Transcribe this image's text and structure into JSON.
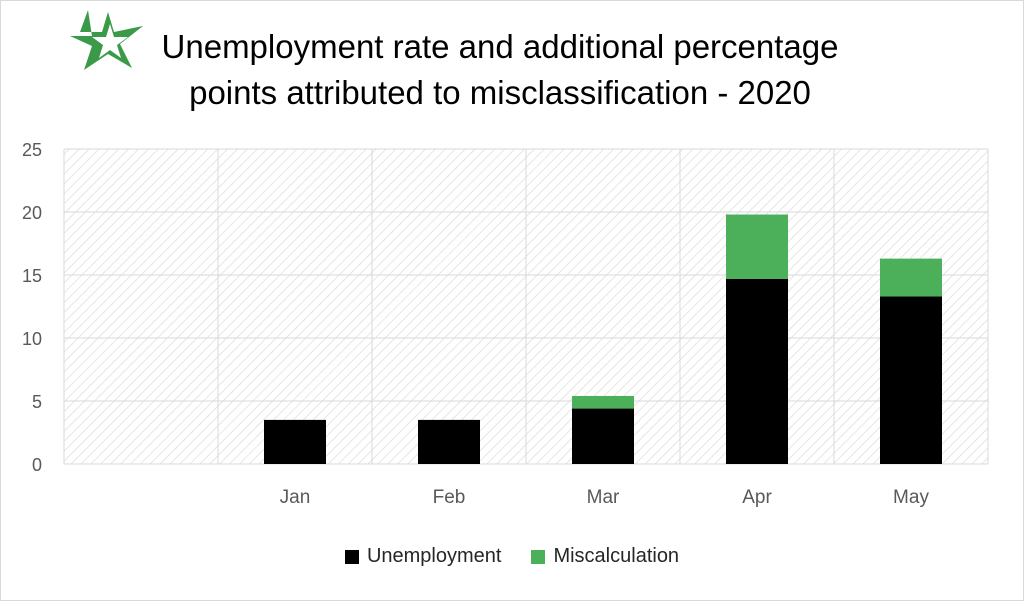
{
  "chart_data": {
    "type": "bar",
    "stacked": true,
    "title_lines": [
      "Unemployment rate and additional percentage",
      "points attributed to misclassification - 2020"
    ],
    "categories": [
      "",
      "Jan",
      "Feb",
      "Mar",
      "Apr",
      "May"
    ],
    "series": [
      {
        "name": "Unemployment",
        "color": "#000000",
        "values": [
          null,
          3.5,
          3.5,
          4.4,
          14.7,
          13.3
        ]
      },
      {
        "name": "Miscalculation",
        "color": "#4caf5a",
        "values": [
          null,
          0,
          0,
          1.0,
          5.1,
          3.0
        ]
      }
    ],
    "ylim": [
      0,
      25
    ],
    "yticks": [
      0,
      5,
      10,
      15,
      20,
      25
    ],
    "grid": true,
    "plot_background": "hatched light gray",
    "legend_position": "bottom"
  },
  "logo": {
    "icon": "green-star-icon",
    "color": "#3a9a47"
  }
}
